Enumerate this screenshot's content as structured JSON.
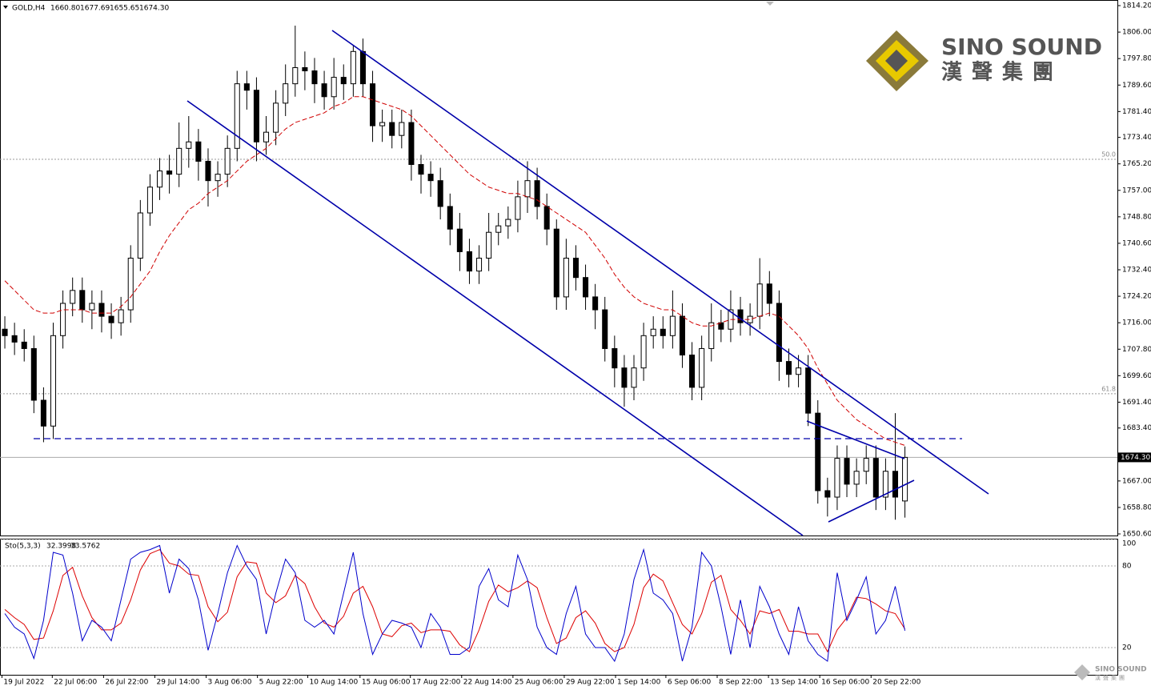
{
  "header": {
    "symbol": "GOLD,H4",
    "values": [
      "1660.80",
      "1677.69",
      "1655.65",
      "1674.30"
    ]
  },
  "logo": {
    "name": "SINO SOUND",
    "chinese": "漢聲集團"
  },
  "chart_data": {
    "type": "candlestick",
    "xlim": [
      -0.5,
      114.95
    ],
    "ylim": [
      1649.86,
      1815.94
    ],
    "yticks": [
      {
        "value": 1814.2,
        "label": "1814.20"
      },
      {
        "value": 1806,
        "label": "1806.00"
      },
      {
        "value": 1797.8,
        "label": "1797.80"
      },
      {
        "value": 1789.6,
        "label": "1789.60"
      },
      {
        "value": 1781.4,
        "label": "1781.40"
      },
      {
        "value": 1773.4,
        "label": "1773.40"
      },
      {
        "value": 1765.2,
        "label": "1765.20"
      },
      {
        "value": 1757,
        "label": "1757.00"
      },
      {
        "value": 1748.8,
        "label": "1748.80"
      },
      {
        "value": 1740.6,
        "label": "1740.60"
      },
      {
        "value": 1732.4,
        "label": "1732.40"
      },
      {
        "value": 1724.2,
        "label": "1724.20"
      },
      {
        "value": 1716,
        "label": "1716.00"
      },
      {
        "value": 1707.8,
        "label": "1707.80"
      },
      {
        "value": 1699.6,
        "label": "1699.60"
      },
      {
        "value": 1691.4,
        "label": "1691.40"
      },
      {
        "value": 1683.4,
        "label": "1683.40"
      },
      {
        "value": 1667,
        "label": "1667.00"
      },
      {
        "value": 1658.8,
        "label": "1658.80"
      },
      {
        "value": 1650.6,
        "label": "1650.60"
      }
    ],
    "xticks": [
      {
        "value": -0.3,
        "label": "19 Jul 2022"
      },
      {
        "value": 4.9,
        "label": "22 Jul 06:00"
      },
      {
        "value": 10.2,
        "label": "26 Jul 22:00"
      },
      {
        "value": 15.5,
        "label": "29 Jul 14:00"
      },
      {
        "value": 20.8,
        "label": "3 Aug 06:00"
      },
      {
        "value": 26.1,
        "label": "5 Aug 22:00"
      },
      {
        "value": 31.3,
        "label": "10 Aug 14:00"
      },
      {
        "value": 36.7,
        "label": "15 Aug 06:00"
      },
      {
        "value": 41.9,
        "label": "17 Aug 22:00"
      },
      {
        "value": 47.2,
        "label": "22 Aug 14:00"
      },
      {
        "value": 52.5,
        "label": "25 Aug 06:00"
      },
      {
        "value": 57.8,
        "label": "29 Aug 22:00"
      },
      {
        "value": 63.1,
        "label": "1 Sep 14:00"
      },
      {
        "value": 68.3,
        "label": "6 Sep 06:00"
      },
      {
        "value": 73.6,
        "label": "8 Sep 22:00"
      },
      {
        "value": 78.9,
        "label": "13 Sep 14:00"
      },
      {
        "value": 84.2,
        "label": "16 Sep 06:00"
      },
      {
        "value": 89.5,
        "label": "20 Sep 22:00"
      }
    ],
    "open": [
      1714,
      1712,
      1710,
      1708,
      1692,
      1684,
      1712,
      1722,
      1726,
      1720,
      1722,
      1718,
      1716,
      1720,
      1736,
      1750,
      1758,
      1763,
      1762,
      1770,
      1772,
      1766,
      1760,
      1762,
      1770,
      1790,
      1788,
      1772,
      1775,
      1784,
      1790,
      1795,
      1794,
      1790,
      1786,
      1792,
      1790,
      1800,
      1790,
      1777,
      1778,
      1774,
      1778,
      1765,
      1762,
      1760,
      1752,
      1745,
      1738,
      1732,
      1736,
      1744,
      1746,
      1748,
      1755,
      1760,
      1752,
      1745,
      1724,
      1736,
      1730,
      1724,
      1720,
      1708,
      1702,
      1696,
      1702,
      1712,
      1714,
      1712,
      1718,
      1706,
      1696,
      1708,
      1716,
      1714,
      1720,
      1716,
      1718,
      1728,
      1722,
      1704,
      1700,
      1702,
      1688,
      1664,
      1662,
      1674,
      1666,
      1670,
      1674,
      1662,
      1670,
      1660.8
    ],
    "high": [
      1718,
      1716,
      1714,
      1712,
      1696,
      1716,
      1726,
      1730,
      1730,
      1726,
      1726,
      1722,
      1724,
      1740,
      1754,
      1762,
      1767,
      1768,
      1778,
      1780,
      1776,
      1770,
      1766,
      1774,
      1794,
      1794,
      1792,
      1780,
      1788,
      1796,
      1808,
      1800,
      1798,
      1794,
      1798,
      1796,
      1802,
      1804,
      1794,
      1782,
      1782,
      1782,
      1782,
      1768,
      1766,
      1764,
      1756,
      1750,
      1742,
      1740,
      1750,
      1750,
      1752,
      1760,
      1766,
      1764,
      1756,
      1748,
      1742,
      1740,
      1734,
      1728,
      1724,
      1712,
      1706,
      1706,
      1716,
      1718,
      1718,
      1726,
      1722,
      1710,
      1712,
      1722,
      1720,
      1726,
      1724,
      1722,
      1736,
      1732,
      1726,
      1708,
      1706,
      1706,
      1692,
      1668,
      1678,
      1678,
      1674,
      1678,
      1678,
      1674,
      1688,
      1677.69
    ],
    "low": [
      1708,
      1706,
      1704,
      1688,
      1679,
      1680,
      1708,
      1718,
      1716,
      1714,
      1713,
      1711,
      1712,
      1716,
      1732,
      1746,
      1754,
      1756,
      1758,
      1764,
      1760,
      1752,
      1755,
      1758,
      1766,
      1782,
      1766,
      1768,
      1771,
      1780,
      1786,
      1788,
      1784,
      1782,
      1782,
      1785,
      1786,
      1786,
      1772,
      1772,
      1770,
      1770,
      1760,
      1756,
      1755,
      1748,
      1740,
      1732,
      1728,
      1728,
      1732,
      1740,
      1742,
      1744,
      1750,
      1748,
      1740,
      1720,
      1720,
      1726,
      1720,
      1714,
      1704,
      1696,
      1690,
      1692,
      1698,
      1708,
      1708,
      1708,
      1702,
      1692,
      1692,
      1704,
      1710,
      1710,
      1712,
      1712,
      1714,
      1718,
      1698,
      1696,
      1696,
      1684,
      1660,
      1656,
      1658,
      1662,
      1662,
      1666,
      1658,
      1658,
      1655,
      1655.65
    ],
    "close": [
      1712,
      1710,
      1708,
      1692,
      1684,
      1712,
      1722,
      1726,
      1720,
      1722,
      1718,
      1716,
      1720,
      1736,
      1750,
      1758,
      1763,
      1762,
      1770,
      1772,
      1766,
      1760,
      1762,
      1770,
      1790,
      1788,
      1772,
      1775,
      1784,
      1790,
      1795,
      1794,
      1790,
      1786,
      1792,
      1790,
      1800,
      1790,
      1777,
      1778,
      1774,
      1778,
      1765,
      1762,
      1760,
      1752,
      1745,
      1738,
      1732,
      1736,
      1744,
      1746,
      1748,
      1755,
      1760,
      1752,
      1745,
      1724,
      1736,
      1730,
      1724,
      1720,
      1708,
      1702,
      1696,
      1702,
      1712,
      1714,
      1712,
      1718,
      1706,
      1696,
      1708,
      1716,
      1714,
      1720,
      1716,
      1718,
      1728,
      1722,
      1704,
      1700,
      1702,
      1688,
      1664,
      1662,
      1674,
      1666,
      1670,
      1674,
      1662,
      1670,
      1662,
      1674.3
    ],
    "moving_average": {
      "color": "#d00000",
      "values": [
        1729,
        1726,
        1723,
        1720,
        1719,
        1719,
        1720,
        1720,
        1720,
        1719,
        1719,
        1719,
        1721,
        1724,
        1728,
        1732,
        1738,
        1743,
        1747,
        1751,
        1753,
        1756,
        1758,
        1760,
        1763,
        1766,
        1768,
        1770,
        1773,
        1776,
        1778,
        1779,
        1780,
        1781,
        1783,
        1784,
        1786,
        1786,
        1785,
        1784,
        1783,
        1782,
        1780,
        1777,
        1774,
        1771,
        1768,
        1765,
        1762,
        1760,
        1758,
        1757,
        1756,
        1756,
        1755,
        1754,
        1752,
        1750,
        1748,
        1746,
        1744,
        1740,
        1736,
        1731,
        1727,
        1724,
        1722,
        1721,
        1720,
        1720,
        1718,
        1716,
        1715,
        1715,
        1716,
        1717,
        1717,
        1717,
        1718,
        1719,
        1718,
        1715,
        1712,
        1708,
        1702,
        1697,
        1692,
        1689,
        1686,
        1684,
        1682,
        1680,
        1679,
        1678
      ]
    },
    "current_price": {
      "value": 1674.3,
      "label": "1674.30"
    },
    "fib_levels": [
      {
        "level": "50.0",
        "price": 1766.6
      },
      {
        "level": "61.8",
        "price": 1694
      }
    ],
    "stochastic": {
      "label": "Sto(5,3,3)",
      "values_text": [
        "32.3998",
        "33.5762"
      ],
      "ylim": [
        0,
        100
      ],
      "yticks": [
        100,
        80,
        20
      ],
      "main": {
        "color": "#0000cc",
        "values": [
          45,
          35,
          30,
          12,
          40,
          90,
          88,
          60,
          25,
          40,
          35,
          25,
          55,
          85,
          90,
          92,
          95,
          60,
          85,
          78,
          55,
          18,
          45,
          75,
          95,
          80,
          70,
          30,
          60,
          85,
          75,
          40,
          35,
          40,
          30,
          60,
          90,
          45,
          15,
          30,
          40,
          38,
          35,
          20,
          45,
          35,
          15,
          15,
          20,
          65,
          78,
          55,
          50,
          88,
          70,
          35,
          20,
          15,
          45,
          65,
          30,
          20,
          20,
          10,
          30,
          70,
          92,
          60,
          55,
          45,
          10,
          35,
          90,
          80,
          50,
          15,
          55,
          20,
          65,
          50,
          30,
          15,
          50,
          25,
          15,
          10,
          75,
          40,
          55,
          72,
          30,
          40,
          65,
          32.3998
        ]
      },
      "signal": {
        "color": "#dd0000",
        "values": [
          48,
          42,
          37,
          26,
          27,
          47,
          73,
          79,
          58,
          42,
          33,
          33,
          38,
          55,
          77,
          89,
          92,
          82,
          80,
          74,
          73,
          50,
          39,
          46,
          72,
          83,
          82,
          60,
          53,
          58,
          73,
          67,
          50,
          38,
          35,
          43,
          60,
          65,
          50,
          30,
          28,
          36,
          38,
          31,
          33,
          33,
          32,
          22,
          17,
          33,
          54,
          66,
          61,
          64,
          69,
          64,
          42,
          23,
          27,
          42,
          47,
          38,
          23,
          17,
          20,
          37,
          64,
          74,
          69,
          53,
          37,
          30,
          45,
          68,
          73,
          48,
          40,
          30,
          47,
          45,
          48,
          32,
          32,
          30,
          30,
          17,
          33,
          42,
          57,
          56,
          52,
          47,
          45,
          33.5762
        ]
      }
    }
  }
}
